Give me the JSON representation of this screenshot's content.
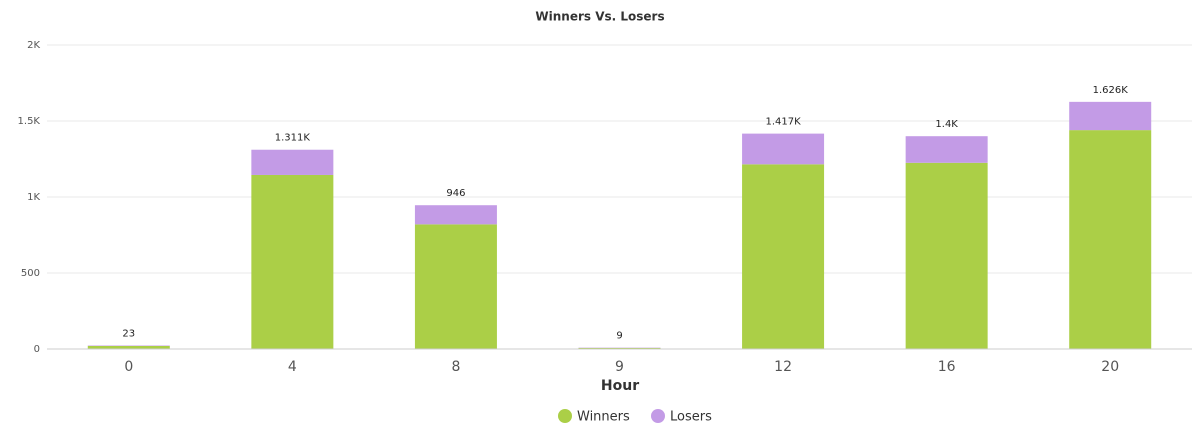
{
  "chart_data": {
    "type": "stacked-bar",
    "title": "Winners Vs. Losers",
    "x_label": "Hour",
    "categories": [
      "0",
      "4",
      "8",
      "9",
      "12",
      "16",
      "20"
    ],
    "series": [
      {
        "name": "Winners",
        "color": "#abcf47",
        "values": [
          20,
          1145,
          820,
          7,
          1215,
          1225,
          1440
        ]
      },
      {
        "name": "Losers",
        "color": "#c39be6",
        "values": [
          3,
          166,
          126,
          2,
          202,
          175,
          186
        ]
      }
    ],
    "totals": {
      "values": [
        23,
        1311,
        946,
        9,
        1417,
        1400,
        1626
      ],
      "value_labels": [
        "23",
        "1.311K",
        "946",
        "9",
        "1.417K",
        "1.4K",
        "1.626K"
      ]
    },
    "ylim": [
      0,
      2000
    ],
    "yticks": [
      0,
      500,
      {
        "value": 1000,
        "label": "1K"
      },
      {
        "value": 1500,
        "label": "1.5K"
      },
      {
        "value": 2000,
        "label": "2K"
      }
    ],
    "grid": true,
    "legend": "bottom"
  }
}
